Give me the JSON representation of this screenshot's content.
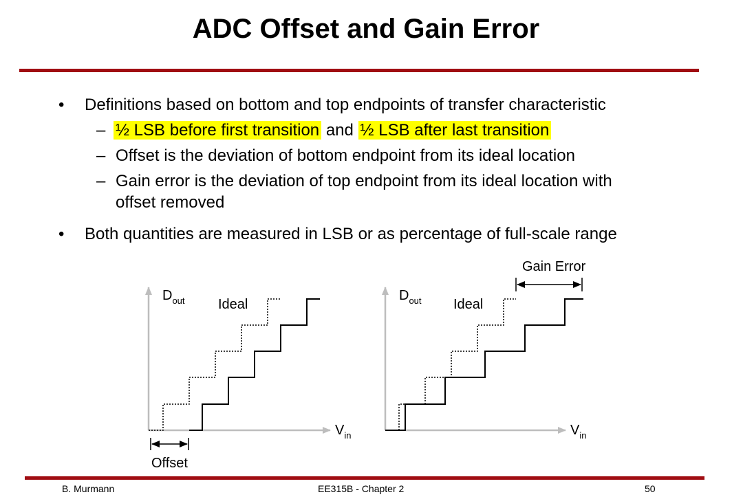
{
  "slide": {
    "title": "ADC Offset and Gain Error",
    "bullets": [
      {
        "marker": "•",
        "text": "Definitions based on bottom and top endpoints of transfer characteristic"
      },
      {
        "marker": "•",
        "text": "Both quantities are measured in LSB or as percentage of full-scale range"
      }
    ],
    "sub_bullets": {
      "marker": "–",
      "first_hl_a": "½ LSB before first transition",
      "first_mid": "and",
      "first_hl_b": "½ LSB after last transition",
      "second": "Offset is the deviation of bottom endpoint from its ideal location",
      "third_line1": "Gain error is the deviation of top endpoint from its ideal location with",
      "third_line2": "offset removed"
    },
    "highlight_color": "#ffff00",
    "accent_color": "#a00d12"
  },
  "diagram": {
    "left": {
      "y_axis_label": "D",
      "y_axis_sub": "out",
      "x_axis_label": "V",
      "x_axis_sub": "in",
      "ideal_label": "Ideal",
      "dimension_label": "Offset"
    },
    "right": {
      "y_axis_label": "D",
      "y_axis_sub": "out",
      "x_axis_label": "V",
      "x_axis_sub": "in",
      "ideal_label": "Ideal",
      "dimension_label": "Gain Error"
    }
  },
  "footer": {
    "author": "B. Murmann",
    "course": "EE315B - Chapter 2",
    "page": "50"
  }
}
